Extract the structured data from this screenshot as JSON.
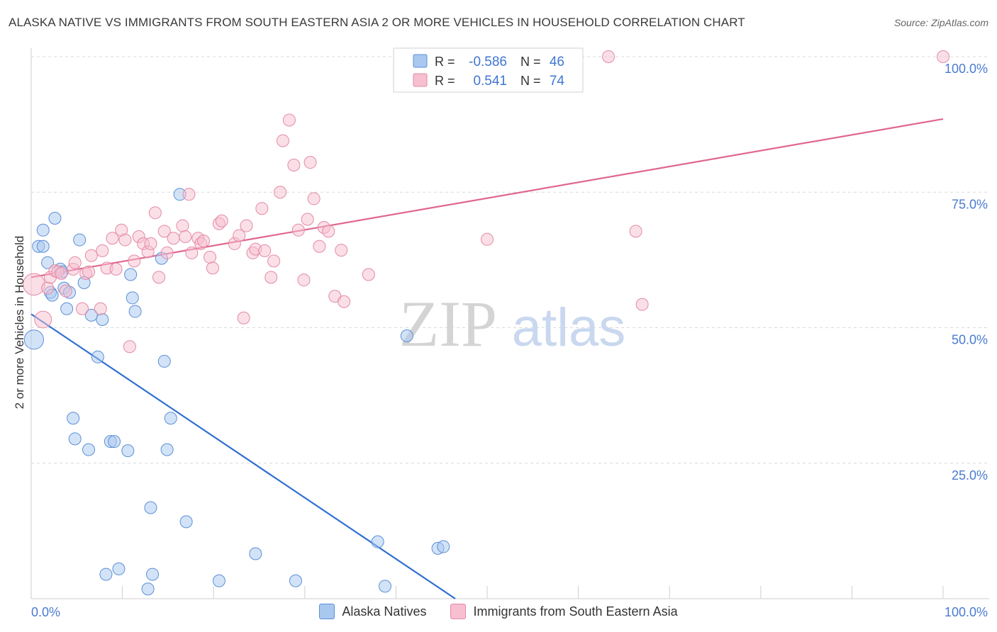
{
  "header": {
    "title": "ALASKA NATIVE VS IMMIGRANTS FROM SOUTH EASTERN ASIA 2 OR MORE VEHICLES IN HOUSEHOLD CORRELATION CHART",
    "source": "Source: ZipAtlas.com"
  },
  "watermark": {
    "zip": "ZIP",
    "atlas": "atlas"
  },
  "colors": {
    "blue_fill": "#a8c8f0",
    "blue_stroke": "#5b8fd6",
    "blue_line": "#2f6fd0",
    "pink_fill": "#f7bfd0",
    "pink_stroke": "#e38aa6",
    "pink_line": "#e06690",
    "axis_text": "#4a7bd0",
    "grid": "#d9d9d9"
  },
  "legend_box": {
    "rows": [
      {
        "r_label": "R =",
        "r_value": "-0.586",
        "n_label": "N =",
        "n_value": "46"
      },
      {
        "r_label": "R =",
        "r_value": "0.541",
        "n_label": "N =",
        "n_value": "74"
      }
    ]
  },
  "chart_data": {
    "type": "scatter",
    "title": "ALASKA NATIVE VS IMMIGRANTS FROM SOUTH EASTERN ASIA 2 OR MORE VEHICLES IN HOUSEHOLD CORRELATION CHART",
    "xlabel": "",
    "ylabel": "2 or more Vehicles in Household",
    "xlim": [
      0,
      100
    ],
    "ylim": [
      0,
      100
    ],
    "x_ticks": [
      "0.0%",
      "100.0%"
    ],
    "y_ticks": [
      {
        "value": 25,
        "label": "25.0%"
      },
      {
        "value": 50,
        "label": "50.0%"
      },
      {
        "value": 75,
        "label": "75.0%"
      },
      {
        "value": 100,
        "label": "100.0%"
      }
    ],
    "grid": true,
    "legend_position": "bottom",
    "series": [
      {
        "name": "Alaska Natives",
        "color": "blue",
        "r": -0.586,
        "n": 46,
        "trend": {
          "x": [
            0,
            46.5
          ],
          "y": [
            52.5,
            0
          ]
        },
        "points": [
          [
            0.3,
            47.8,
            1.6
          ],
          [
            0.8,
            65.0,
            1
          ],
          [
            1.3,
            65.0,
            1
          ],
          [
            1.3,
            68.0,
            1
          ],
          [
            1.8,
            62.0,
            1
          ],
          [
            2.1,
            56.5,
            1
          ],
          [
            2.3,
            56.0,
            1
          ],
          [
            2.6,
            70.2,
            1
          ],
          [
            3.2,
            60.8,
            1
          ],
          [
            3.4,
            60.3,
            1
          ],
          [
            3.6,
            57.3,
            1
          ],
          [
            3.9,
            53.5,
            1
          ],
          [
            4.2,
            56.5,
            1
          ],
          [
            4.6,
            33.3,
            1
          ],
          [
            4.8,
            29.5,
            1
          ],
          [
            5.3,
            66.2,
            1
          ],
          [
            5.8,
            58.3,
            1
          ],
          [
            6.3,
            27.5,
            1
          ],
          [
            6.6,
            52.3,
            1
          ],
          [
            7.3,
            44.6,
            1
          ],
          [
            7.8,
            51.5,
            1
          ],
          [
            8.2,
            4.5,
            1
          ],
          [
            8.7,
            29.0,
            1
          ],
          [
            9.1,
            29.0,
            1
          ],
          [
            9.6,
            5.5,
            1
          ],
          [
            10.6,
            27.3,
            1
          ],
          [
            10.9,
            59.8,
            1
          ],
          [
            11.1,
            55.5,
            1
          ],
          [
            11.4,
            53.0,
            1
          ],
          [
            12.8,
            1.8,
            1
          ],
          [
            13.1,
            16.8,
            1
          ],
          [
            13.3,
            4.5,
            1
          ],
          [
            14.3,
            62.8,
            1
          ],
          [
            14.6,
            43.8,
            1
          ],
          [
            14.9,
            27.5,
            1
          ],
          [
            15.3,
            33.3,
            1
          ],
          [
            16.3,
            74.6,
            1
          ],
          [
            17.0,
            14.2,
            1
          ],
          [
            20.6,
            3.3,
            1
          ],
          [
            24.6,
            8.3,
            1
          ],
          [
            29.0,
            3.3,
            1
          ],
          [
            38.0,
            10.5,
            1
          ],
          [
            38.8,
            2.3,
            1
          ],
          [
            44.6,
            9.3,
            1
          ],
          [
            45.2,
            9.6,
            1
          ],
          [
            41.2,
            48.5,
            1
          ]
        ]
      },
      {
        "name": "Immigrants from South Eastern Asia",
        "color": "pink",
        "r": 0.541,
        "n": 74,
        "trend": {
          "x": [
            0,
            100
          ],
          "y": [
            59.3,
            88.5
          ]
        },
        "points": [
          [
            0.3,
            58.0,
            1.8
          ],
          [
            1.3,
            51.5,
            1.4
          ],
          [
            1.8,
            57.3,
            1
          ],
          [
            2.1,
            59.3,
            1
          ],
          [
            2.6,
            60.5,
            1
          ],
          [
            2.9,
            60.3,
            1
          ],
          [
            3.3,
            60.0,
            1
          ],
          [
            4.6,
            60.8,
            1
          ],
          [
            4.8,
            62.0,
            1
          ],
          [
            5.6,
            53.5,
            1
          ],
          [
            6.0,
            60.0,
            1
          ],
          [
            6.3,
            60.3,
            1
          ],
          [
            6.6,
            63.3,
            1
          ],
          [
            7.6,
            53.5,
            1
          ],
          [
            7.8,
            64.2,
            1
          ],
          [
            8.3,
            61.0,
            1
          ],
          [
            8.9,
            66.5,
            1
          ],
          [
            9.3,
            60.8,
            1
          ],
          [
            9.9,
            68.0,
            1
          ],
          [
            10.3,
            66.2,
            1
          ],
          [
            10.8,
            46.5,
            1
          ],
          [
            11.3,
            62.3,
            1
          ],
          [
            11.8,
            66.8,
            1
          ],
          [
            12.3,
            65.5,
            1
          ],
          [
            12.8,
            64.0,
            1
          ],
          [
            13.1,
            65.5,
            1
          ],
          [
            13.6,
            71.2,
            1
          ],
          [
            14.0,
            59.3,
            1
          ],
          [
            14.6,
            67.8,
            1
          ],
          [
            14.9,
            63.8,
            1
          ],
          [
            15.6,
            66.5,
            1
          ],
          [
            16.6,
            68.8,
            1
          ],
          [
            16.9,
            66.8,
            1
          ],
          [
            17.3,
            74.6,
            1
          ],
          [
            17.6,
            63.8,
            1
          ],
          [
            18.3,
            66.5,
            1
          ],
          [
            18.6,
            65.5,
            1
          ],
          [
            18.9,
            66.0,
            1
          ],
          [
            19.6,
            63.0,
            1
          ],
          [
            19.9,
            61.0,
            1
          ],
          [
            20.6,
            69.2,
            1
          ],
          [
            20.9,
            69.7,
            1
          ],
          [
            22.3,
            65.5,
            1
          ],
          [
            22.8,
            67.0,
            1
          ],
          [
            23.3,
            51.8,
            1
          ],
          [
            23.6,
            68.8,
            1
          ],
          [
            24.3,
            63.8,
            1
          ],
          [
            24.6,
            64.5,
            1
          ],
          [
            25.3,
            72.0,
            1
          ],
          [
            25.6,
            64.2,
            1
          ],
          [
            26.3,
            59.3,
            1
          ],
          [
            26.6,
            62.3,
            1
          ],
          [
            27.3,
            75.0,
            1
          ],
          [
            27.6,
            84.5,
            1
          ],
          [
            28.3,
            88.3,
            1
          ],
          [
            28.8,
            80.0,
            1
          ],
          [
            29.3,
            68.0,
            1
          ],
          [
            29.9,
            58.8,
            1
          ],
          [
            30.3,
            70.0,
            1
          ],
          [
            30.6,
            80.5,
            1
          ],
          [
            31.0,
            73.8,
            1
          ],
          [
            31.6,
            65.0,
            1
          ],
          [
            32.1,
            68.5,
            1
          ],
          [
            32.6,
            67.8,
            1
          ],
          [
            33.3,
            55.8,
            1
          ],
          [
            34.0,
            64.3,
            1
          ],
          [
            34.3,
            54.8,
            1
          ],
          [
            37.0,
            59.8,
            1
          ],
          [
            50.0,
            66.3,
            1
          ],
          [
            63.3,
            100.0,
            1
          ],
          [
            66.3,
            67.8,
            1
          ],
          [
            67.0,
            54.3,
            1
          ],
          [
            100.0,
            100.0,
            1
          ],
          [
            3.8,
            56.8,
            1
          ]
        ]
      }
    ]
  }
}
